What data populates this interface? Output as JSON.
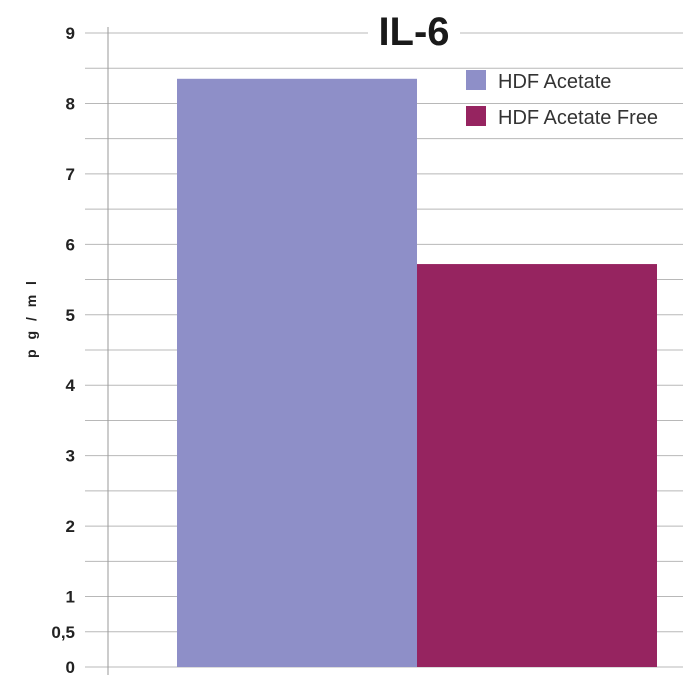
{
  "chart_data": {
    "type": "bar",
    "title": "IL-6",
    "xlabel": "",
    "ylabel": "p g / m l",
    "ylim": [
      0,
      9
    ],
    "y_ticks": [
      {
        "value": 0,
        "label": "0"
      },
      {
        "value": 0.5,
        "label": "0,5"
      },
      {
        "value": 1,
        "label": "1"
      },
      {
        "value": 2,
        "label": "2"
      },
      {
        "value": 3,
        "label": "3"
      },
      {
        "value": 4,
        "label": "4"
      },
      {
        "value": 5,
        "label": "5"
      },
      {
        "value": 6,
        "label": "6"
      },
      {
        "value": 7,
        "label": "7"
      },
      {
        "value": 8,
        "label": "8"
      },
      {
        "value": 9,
        "label": "9"
      }
    ],
    "grid": true,
    "legend_position": "top-right",
    "series": [
      {
        "name": "HDF Acetate",
        "value": 8.35,
        "color": "#8e8fc8"
      },
      {
        "name": "HDF Acetate Free",
        "value": 5.72,
        "color": "#962460"
      }
    ]
  }
}
